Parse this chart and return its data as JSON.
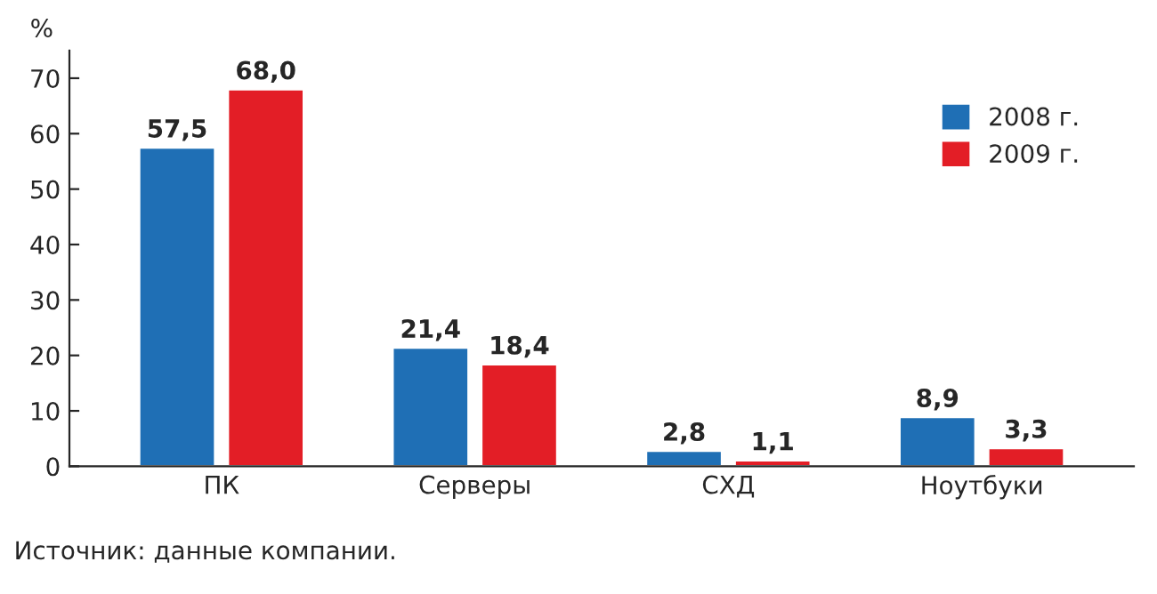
{
  "chart_data": {
    "type": "bar",
    "ylabel": "%",
    "categories": [
      "ПК",
      "Серверы",
      "СХД",
      "Ноутбуки"
    ],
    "series": [
      {
        "name": "2008 г.",
        "color": "#1f6fb5",
        "values": [
          57.5,
          21.4,
          2.8,
          8.9
        ],
        "value_labels": [
          "57,5",
          "21,4",
          "2,8",
          "8,9"
        ]
      },
      {
        "name": "2009 г.",
        "color": "#e31e26",
        "values": [
          68.0,
          18.4,
          1.1,
          3.3
        ],
        "value_labels": [
          "68,0",
          "18,4",
          "1,1",
          "3,3"
        ]
      }
    ],
    "ylim": [
      0,
      75
    ],
    "yticks": [
      0,
      10,
      20,
      30,
      40,
      50,
      60,
      70
    ],
    "grid": false,
    "legend": "top right",
    "annotations": [
      "Источник: данные компании."
    ]
  }
}
